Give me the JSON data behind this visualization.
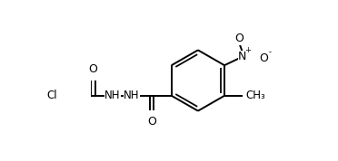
{
  "bg_color": "#ffffff",
  "line_color": "#000000",
  "line_width": 1.4,
  "font_size": 8.5,
  "figsize": [
    3.72,
    1.78
  ],
  "dpi": 100,
  "xlim": [
    0.0,
    1.0
  ],
  "ylim": [
    0.0,
    1.0
  ]
}
